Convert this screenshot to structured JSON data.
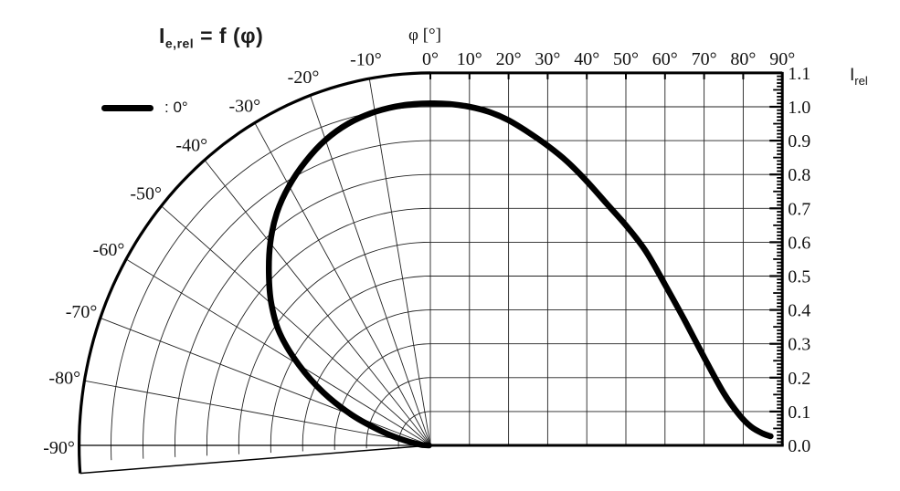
{
  "title": {
    "lhs": "I",
    "lhs_sub": "e,rel",
    "rhs": " = f (φ)"
  },
  "legend": {
    "series_label": ": 0°"
  },
  "axes": {
    "phi_axis_label": "φ [°]",
    "phi_tick_labels": [
      "0°",
      "10°",
      "20°",
      "30°",
      "40°",
      "50°",
      "60°",
      "70°",
      "80°",
      "90°"
    ],
    "polar_angle_labels": [
      "-10°",
      "-20°",
      "-30°",
      "-40°",
      "-50°",
      "-60°",
      "-70°",
      "-80°",
      "-90°"
    ],
    "intensity_axis_label": {
      "lhs": "I",
      "sub": "rel"
    },
    "intensity_tick_labels": [
      "1.1",
      "1.0",
      "0.9",
      "0.8",
      "0.7",
      "0.6",
      "0.5",
      "0.4",
      "0.3",
      "0.2",
      "0.1",
      "0.0"
    ]
  },
  "colors": {
    "curve": "#000000",
    "grid": "#222222",
    "axis": "#000000",
    "text": "#111111",
    "background": "#ffffff"
  },
  "chart_data": {
    "type": "line",
    "subtype": "radiation pattern: left half polar (r = Irel over φ −90°…0°), right half cartesian (Irel vs φ 0°…90°)",
    "title": "Ie,rel = f (φ)",
    "xlabel": "φ [°]",
    "ylabel": "Irel",
    "legend_entries": [
      "0°"
    ],
    "x_range_deg": [
      -90,
      90
    ],
    "y_range": [
      0.0,
      1.1
    ],
    "x_tick_step_deg": 10,
    "y_tick_step": 0.1,
    "grid": true,
    "series": [
      {
        "name": "0°",
        "points": [
          [
            0,
            1.01
          ],
          [
            5,
            1.008
          ],
          [
            10,
            1.0
          ],
          [
            15,
            0.985
          ],
          [
            20,
            0.96
          ],
          [
            25,
            0.925
          ],
          [
            30,
            0.885
          ],
          [
            35,
            0.838
          ],
          [
            40,
            0.78
          ],
          [
            45,
            0.715
          ],
          [
            50,
            0.65
          ],
          [
            55,
            0.575
          ],
          [
            60,
            0.475
          ],
          [
            65,
            0.37
          ],
          [
            70,
            0.26
          ],
          [
            75,
            0.155
          ],
          [
            79,
            0.09
          ],
          [
            82,
            0.055
          ],
          [
            85,
            0.035
          ],
          [
            87,
            0.027
          ]
        ],
        "mirrored_on_polar_half": true
      }
    ]
  }
}
